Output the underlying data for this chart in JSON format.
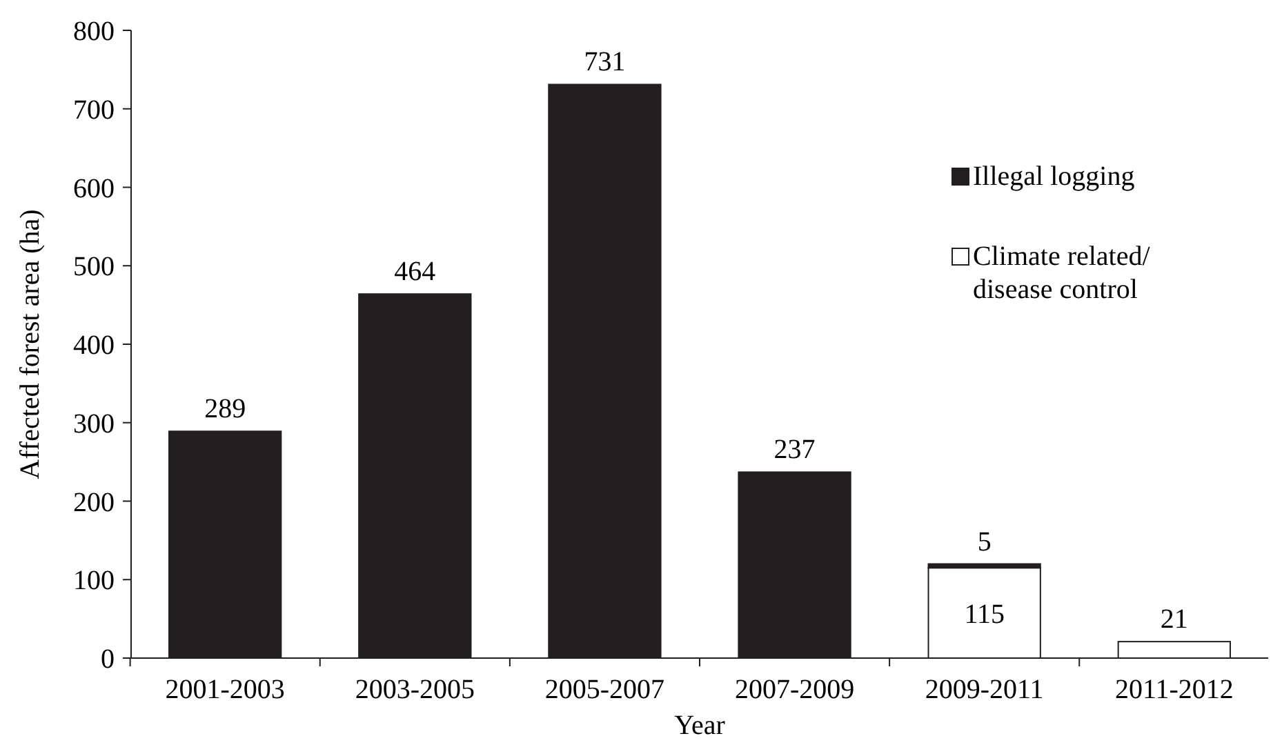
{
  "chart_data": {
    "type": "bar",
    "stacked": true,
    "xlabel": "Year",
    "ylabel": "Affected forest area (ha)",
    "categories": [
      "2001-2003",
      "2003-2005",
      "2005-2007",
      "2007-2009",
      "2009-2011",
      "2011-2012"
    ],
    "series": [
      {
        "name": "Climate related/disease control",
        "color": "#ffffff",
        "values": [
          null,
          null,
          null,
          null,
          115,
          21
        ]
      },
      {
        "name": "Illegal logging",
        "color": "#231f20",
        "values": [
          289,
          464,
          731,
          237,
          5,
          null
        ]
      }
    ],
    "ylim": [
      0,
      800
    ],
    "yticks": [
      0,
      100,
      200,
      300,
      400,
      500,
      600,
      700,
      800
    ],
    "data_labels": true,
    "legend": "top right"
  }
}
